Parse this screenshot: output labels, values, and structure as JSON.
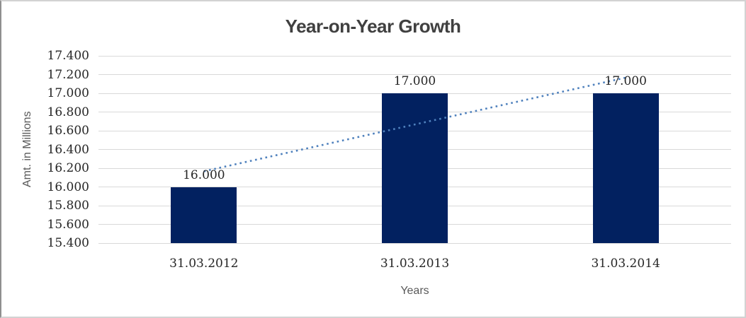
{
  "chart_data": {
    "type": "bar",
    "title": "Year-on-Year Growth",
    "xlabel": "Years",
    "ylabel": "Amt. in Millions",
    "categories": [
      "31.03.2012",
      "31.03.2013",
      "31.03.2014"
    ],
    "series": [
      {
        "name": "Amount",
        "values": [
          16.0,
          17.0,
          17.0
        ],
        "data_labels": [
          "16.000",
          "17.000",
          "17.000"
        ]
      }
    ],
    "ylim": [
      15.4,
      17.4
    ],
    "yticks": [
      {
        "value": 15.4,
        "label": "15.400"
      },
      {
        "value": 15.6,
        "label": "15.600"
      },
      {
        "value": 15.8,
        "label": "15.800"
      },
      {
        "value": 16.0,
        "label": "16.000"
      },
      {
        "value": 16.2,
        "label": "16.200"
      },
      {
        "value": 16.4,
        "label": "16.400"
      },
      {
        "value": 16.6,
        "label": "16.600"
      },
      {
        "value": 16.8,
        "label": "16.800"
      },
      {
        "value": 17.0,
        "label": "17.000"
      },
      {
        "value": 17.2,
        "label": "17.200"
      },
      {
        "value": 17.4,
        "label": "17.400"
      }
    ],
    "grid": true,
    "legend": false,
    "trendline": {
      "type": "linear",
      "style": "dotted",
      "start_value": 16.167,
      "end_value": 17.167
    },
    "colors": {
      "bar": "#022160",
      "trendline": "#4f81bd",
      "gridline": "#d9d9d9",
      "title_text": "#404040",
      "axis_title_text": "#595959",
      "label_text": "#262626",
      "background": "#ffffff"
    }
  }
}
